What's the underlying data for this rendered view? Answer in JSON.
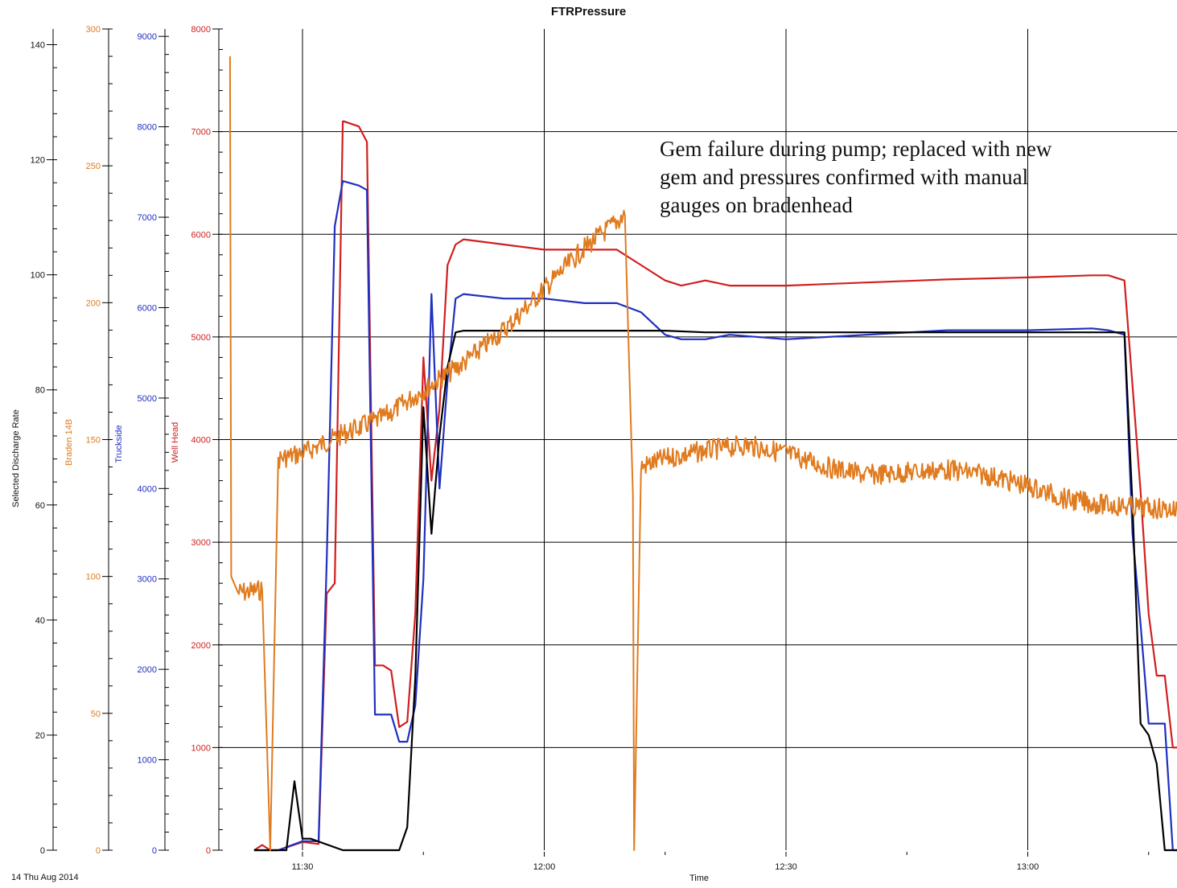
{
  "chart_data": {
    "type": "line",
    "title": "FTRPressure",
    "date_label": "14 Thu Aug 2014",
    "xlabel": "Time",
    "x_ticks": [
      "11:30",
      "12:00",
      "12:30",
      "13:00"
    ],
    "x_range": [
      "11:21",
      "13:35"
    ],
    "grid": true,
    "annotation": "Gem failure during pump; replaced with new\ngem and pressures confirmed with manual\ngauges on bradenhead",
    "axes": [
      {
        "name": "Selected Discharge Rate",
        "color": "#000000",
        "ylim": [
          0,
          150
        ],
        "ticks": [
          0,
          20,
          40,
          60,
          80,
          100,
          120,
          140
        ]
      },
      {
        "name": "Braden 14B",
        "color": "#e07b1f",
        "ylim": [
          0,
          300
        ],
        "ticks": [
          0,
          50,
          100,
          150,
          200,
          250,
          300
        ]
      },
      {
        "name": "Truckside",
        "color": "#1f2fbf",
        "ylim": [
          0,
          9500
        ],
        "ticks": [
          0,
          1000,
          2000,
          3000,
          4000,
          5000,
          6000,
          7000,
          8000,
          9000
        ]
      },
      {
        "name": "Well Head",
        "color": "#d11f1f",
        "ylim": [
          0,
          8000
        ],
        "ticks": [
          0,
          1000,
          2000,
          3000,
          4000,
          5000,
          6000,
          7000,
          8000
        ]
      }
    ],
    "series": [
      {
        "name": "Well Head",
        "axis": "Well Head",
        "color": "#d11f1f",
        "x": [
          "11:24",
          "11:25",
          "11:26",
          "11:27",
          "11:30",
          "11:32",
          "11:33",
          "11:34",
          "11:35",
          "11:35",
          "11:37",
          "11:38",
          "11:39",
          "11:40",
          "11:41",
          "11:42",
          "11:43",
          "11:44",
          "11:45",
          "11:46",
          "11:47",
          "11:48",
          "11:49",
          "11:50",
          "11:55",
          "12:00",
          "12:05",
          "12:09",
          "12:12",
          "12:15",
          "12:17",
          "12:20",
          "12:23",
          "12:30",
          "12:40",
          "12:50",
          "13:00",
          "13:08",
          "13:10",
          "13:12",
          "13:14",
          "13:15",
          "13:16",
          "13:17",
          "13:18",
          "13:20"
        ],
        "y": [
          0,
          50,
          0,
          0,
          80,
          60,
          2500,
          2600,
          7100,
          7100,
          7050,
          6900,
          1800,
          1800,
          1750,
          1200,
          1250,
          2300,
          4800,
          3600,
          4300,
          5700,
          5900,
          5950,
          5900,
          5850,
          5850,
          5850,
          5700,
          5550,
          5500,
          5550,
          5500,
          5500,
          5530,
          5560,
          5580,
          5600,
          5600,
          5550,
          3500,
          2300,
          1700,
          1700,
          1000,
          1000
        ]
      },
      {
        "name": "Truckside",
        "axis": "Truckside",
        "color": "#1f2fbf",
        "x": [
          "11:24",
          "11:27",
          "11:30",
          "11:32",
          "11:33",
          "11:34",
          "11:35",
          "11:37",
          "11:38",
          "11:39",
          "11:40",
          "11:41",
          "11:42",
          "11:43",
          "11:44",
          "11:45",
          "11:46",
          "11:47",
          "11:48",
          "11:49",
          "11:50",
          "11:55",
          "12:00",
          "12:05",
          "12:09",
          "12:12",
          "12:15",
          "12:17",
          "12:20",
          "12:23",
          "12:30",
          "12:40",
          "12:50",
          "13:00",
          "13:08",
          "13:10",
          "13:12",
          "13:13",
          "13:14",
          "13:15",
          "13:16",
          "13:17",
          "13:18",
          "13:20"
        ],
        "y": [
          0,
          0,
          100,
          100,
          3200,
          6900,
          7400,
          7350,
          7300,
          1500,
          1500,
          1500,
          1200,
          1200,
          1600,
          3000,
          6150,
          4000,
          5200,
          6100,
          6150,
          6100,
          6100,
          6050,
          6050,
          5950,
          5700,
          5650,
          5650,
          5700,
          5650,
          5700,
          5750,
          5750,
          5770,
          5750,
          5700,
          3500,
          2500,
          1400,
          1400,
          1400,
          0,
          0
        ]
      },
      {
        "name": "Selected Discharge Rate",
        "axis": "Selected Discharge Rate",
        "color": "#000000",
        "x": [
          "11:24",
          "11:26",
          "11:28",
          "11:29",
          "11:30",
          "11:31",
          "11:35",
          "11:38",
          "11:40",
          "11:42",
          "11:43",
          "11:44",
          "11:45",
          "11:46",
          "11:47",
          "11:48",
          "11:49",
          "11:50",
          "11:55",
          "12:00",
          "12:05",
          "12:10",
          "12:15",
          "12:20",
          "12:30",
          "12:40",
          "12:50",
          "13:00",
          "13:10",
          "13:12",
          "13:13",
          "13:14",
          "13:15",
          "13:16",
          "13:17",
          "13:18",
          "13:20"
        ],
        "y": [
          0,
          0,
          0,
          12,
          2,
          2,
          0,
          0,
          0,
          0,
          4,
          30,
          77,
          55,
          72,
          84,
          90,
          90.3,
          90.3,
          90.3,
          90.3,
          90.3,
          90.3,
          90,
          90,
          90,
          90,
          90,
          90,
          90,
          60,
          22,
          20,
          15,
          0,
          0,
          0
        ]
      },
      {
        "name": "Braden 14B",
        "axis": "Braden 14B",
        "color": "#e07b1f",
        "noisy": true,
        "x": [
          "11:21",
          "11:21",
          "11:22",
          "11:25",
          "11:26",
          "11:27",
          "11:30",
          "11:35",
          "11:40",
          "11:45",
          "11:50",
          "11:55",
          "12:00",
          "12:05",
          "12:10",
          "12:11",
          "12:11",
          "12:12",
          "12:15",
          "12:20",
          "12:25",
          "12:30",
          "12:35",
          "12:40",
          "12:45",
          "12:50",
          "12:55",
          "13:00",
          "13:05",
          "13:10",
          "13:15",
          "13:20"
        ],
        "y": [
          290,
          100,
          94,
          95,
          0,
          143,
          145,
          152,
          158,
          168,
          178,
          190,
          205,
          220,
          232,
          130,
          0,
          140,
          143,
          146,
          148,
          145,
          140,
          137,
          138,
          139,
          137,
          133,
          128,
          126,
          125,
          124
        ]
      }
    ]
  }
}
